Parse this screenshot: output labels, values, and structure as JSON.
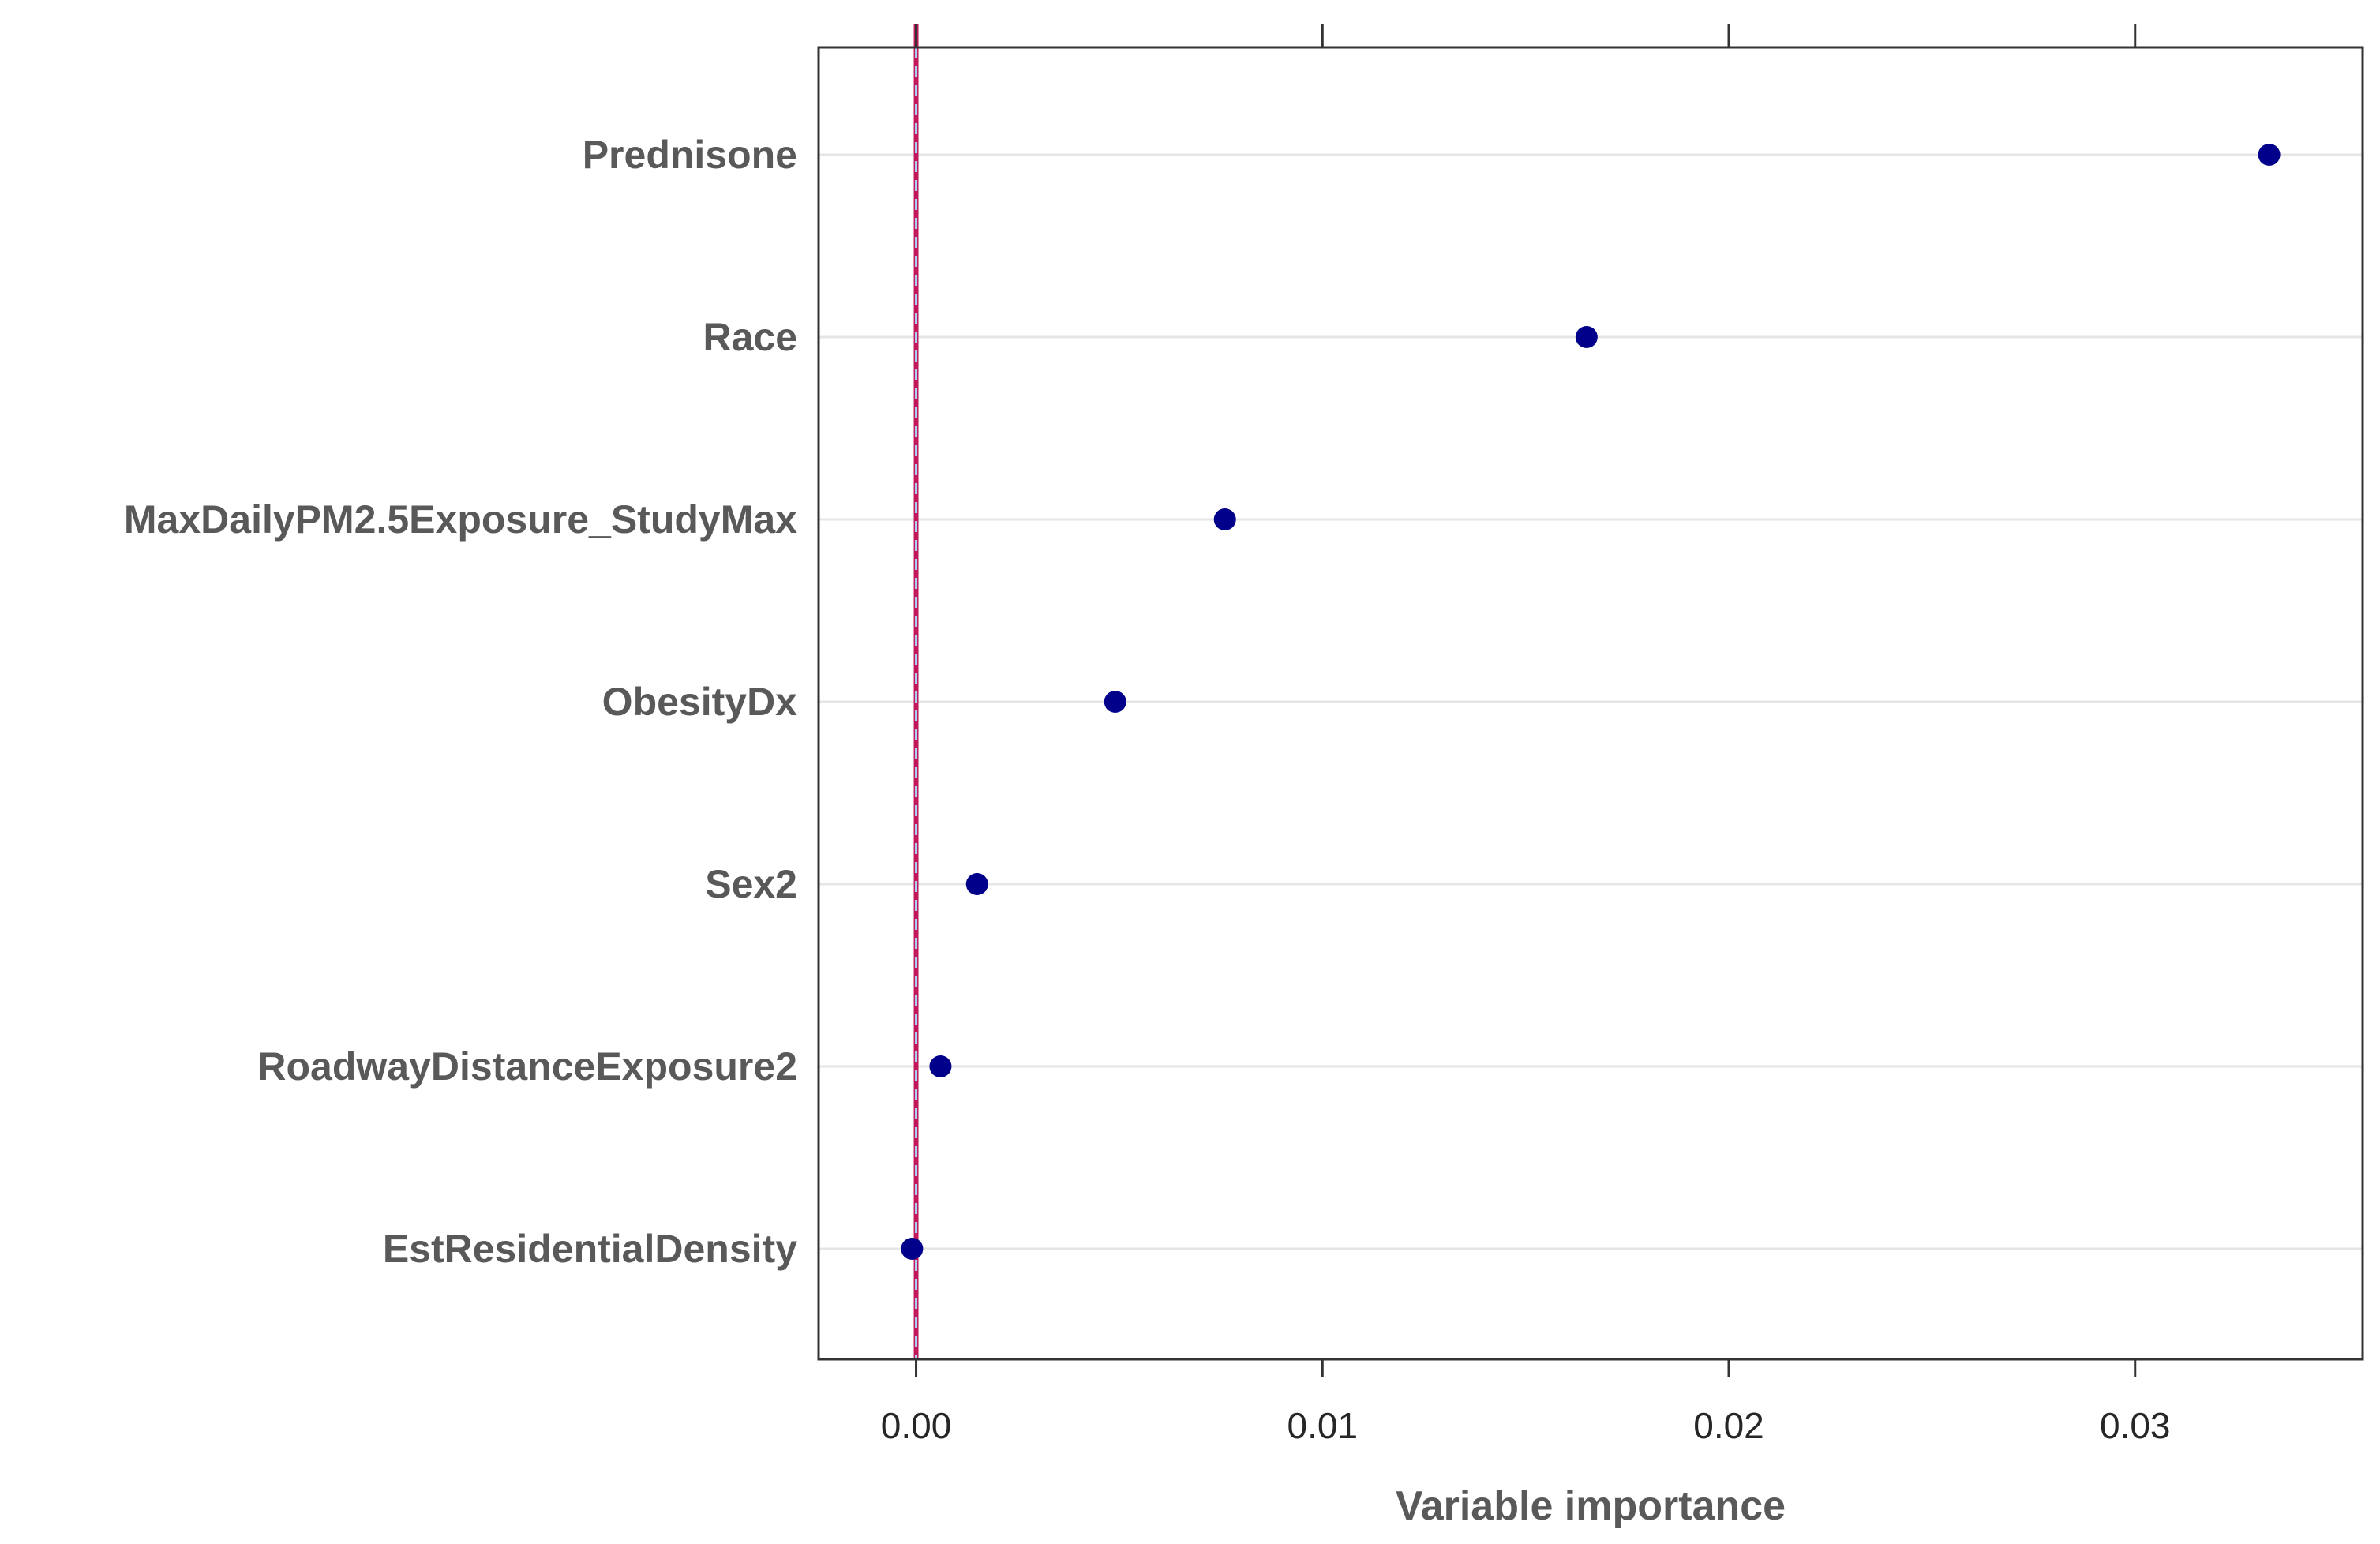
{
  "chart_data": {
    "type": "scatter",
    "title": "",
    "xlabel": "Variable importance",
    "ylabel": "",
    "xlim": [
      -0.0024,
      0.0356
    ],
    "xticks": [
      {
        "value": 0.0,
        "label": "0.00"
      },
      {
        "value": 0.01,
        "label": "0.01"
      },
      {
        "value": 0.02,
        "label": "0.02"
      },
      {
        "value": 0.03,
        "label": "0.03"
      }
    ],
    "reference_line": 0.0,
    "grid": "horizontal",
    "categories": [
      "Prednisone",
      "Race",
      "MaxDailyPM2.5Exposure_StudyMax",
      "ObesityDx",
      "Sex2",
      "RoadwayDistanceExposure2",
      "EstResidentialDensity"
    ],
    "values": [
      0.0333,
      0.0165,
      0.0076,
      0.0049,
      0.0015,
      0.0006,
      -0.0001
    ],
    "colors": {
      "point": "#00008B",
      "reference_line": "#C2185B",
      "reference_dash": "#A9D3F5",
      "grid": "#E5E5E5",
      "frame": "#333333",
      "label": "#595959"
    }
  }
}
